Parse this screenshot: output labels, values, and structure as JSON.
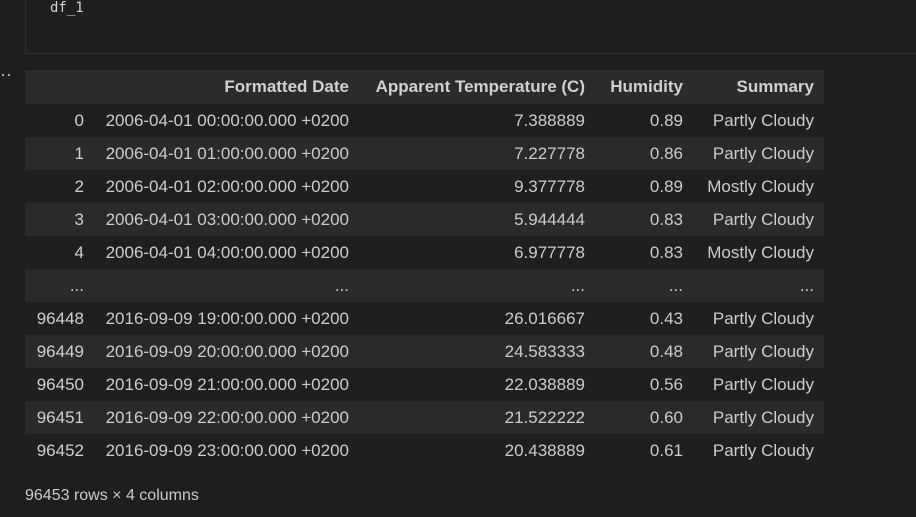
{
  "code": {
    "text": "df_1"
  },
  "table": {
    "header": [
      "",
      "Formatted Date",
      "Apparent Temperature (C)",
      "Humidity",
      "Summary"
    ],
    "rows": [
      [
        "0",
        "2006-04-01 00:00:00.000 +0200",
        "7.388889",
        "0.89",
        "Partly Cloudy"
      ],
      [
        "1",
        "2006-04-01 01:00:00.000 +0200",
        "7.227778",
        "0.86",
        "Partly Cloudy"
      ],
      [
        "2",
        "2006-04-01 02:00:00.000 +0200",
        "9.377778",
        "0.89",
        "Mostly Cloudy"
      ],
      [
        "3",
        "2006-04-01 03:00:00.000 +0200",
        "5.944444",
        "0.83",
        "Partly Cloudy"
      ],
      [
        "4",
        "2006-04-01 04:00:00.000 +0200",
        "6.977778",
        "0.83",
        "Mostly Cloudy"
      ],
      [
        "...",
        "...",
        "...",
        "...",
        "..."
      ],
      [
        "96448",
        "2016-09-09 19:00:00.000 +0200",
        "26.016667",
        "0.43",
        "Partly Cloudy"
      ],
      [
        "96449",
        "2016-09-09 20:00:00.000 +0200",
        "24.583333",
        "0.48",
        "Partly Cloudy"
      ],
      [
        "96450",
        "2016-09-09 21:00:00.000 +0200",
        "22.038889",
        "0.56",
        "Partly Cloudy"
      ],
      [
        "96451",
        "2016-09-09 22:00:00.000 +0200",
        "21.522222",
        "0.60",
        "Partly Cloudy"
      ],
      [
        "96452",
        "2016-09-09 23:00:00.000 +0200",
        "20.438889",
        "0.61",
        "Partly Cloudy"
      ]
    ]
  },
  "footer": "96453 rows × 4 columns"
}
